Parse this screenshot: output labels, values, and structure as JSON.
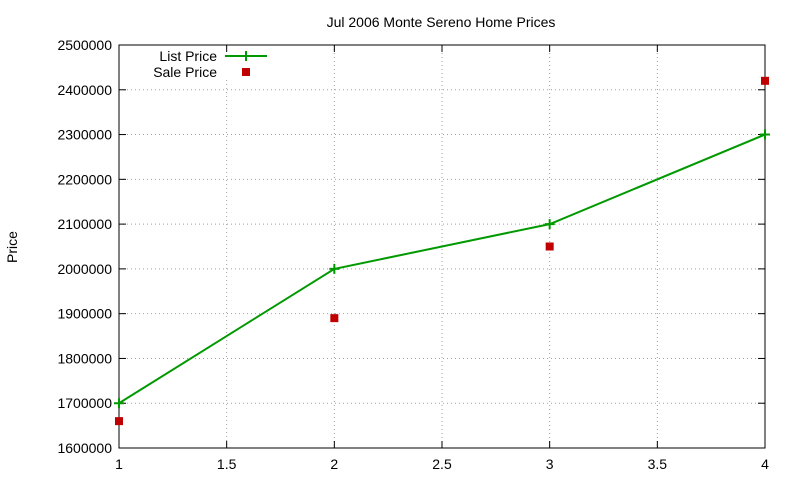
{
  "chart_data": {
    "type": "line",
    "title": "Jul 2006 Monte Sereno Home Prices",
    "xlabel": "",
    "ylabel": "Price",
    "xlim": [
      1,
      4
    ],
    "ylim": [
      1600000,
      2500000
    ],
    "x_ticks": [
      1,
      1.5,
      2,
      2.5,
      3,
      3.5,
      4
    ],
    "x_tick_labels": [
      "1",
      "1.5",
      "2",
      "2.5",
      "3",
      "3.5",
      "4"
    ],
    "y_ticks": [
      1600000,
      1700000,
      1800000,
      1900000,
      2000000,
      2100000,
      2200000,
      2300000,
      2400000,
      2500000
    ],
    "y_tick_labels": [
      "1600000",
      "1700000",
      "1800000",
      "1900000",
      "2000000",
      "2100000",
      "2200000",
      "2300000",
      "2400000",
      "2500000"
    ],
    "grid": true,
    "legend_position": "top-left",
    "series": [
      {
        "name": "List Price",
        "style": "linespoints",
        "marker": "plus",
        "color": "#009900",
        "x": [
          1,
          2,
          3,
          4
        ],
        "y": [
          1700000,
          2000000,
          2100000,
          2300000
        ]
      },
      {
        "name": "Sale Price",
        "style": "points",
        "marker": "square",
        "color": "#c00000",
        "x": [
          1,
          2,
          3,
          4
        ],
        "y": [
          1660000,
          1890000,
          2050000,
          2420000
        ]
      }
    ]
  }
}
